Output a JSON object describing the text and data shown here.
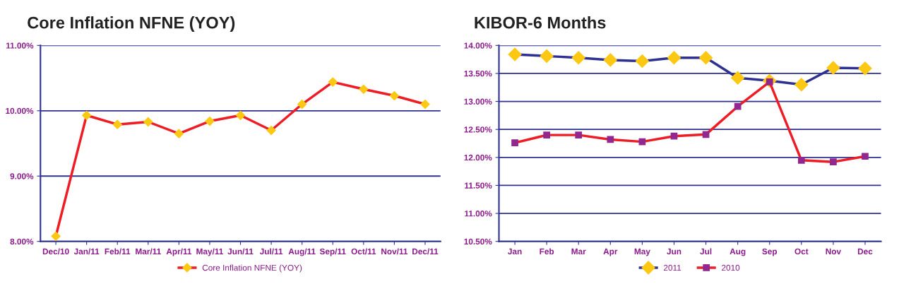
{
  "chart_data": [
    {
      "type": "line",
      "title": "Core Inflation NFNE (YOY)",
      "categories": [
        "Dec/10",
        "Jan/11",
        "Feb/11",
        "Mar/11",
        "Apr/11",
        "May/11",
        "Jun/11",
        "Jul/11",
        "Aug/11",
        "Sep/11",
        "Oct/11",
        "Nov/11",
        "Dec/11"
      ],
      "series": [
        {
          "name": "Core Inflation NFNE (YOY)",
          "color": "#ee1c25",
          "marker": "diamond",
          "values": [
            8.08,
            9.93,
            9.79,
            9.83,
            9.65,
            9.84,
            9.93,
            9.7,
            10.1,
            10.44,
            10.33,
            10.23,
            10.1
          ]
        }
      ],
      "ylim": [
        8,
        11
      ],
      "yticks": [
        {
          "value": 8,
          "label": "8.00%"
        },
        {
          "value": 9,
          "label": "9.00%"
        },
        {
          "value": 10,
          "label": "10.00%"
        },
        {
          "value": 11,
          "label": "11.00%"
        }
      ],
      "grid": "y",
      "legend": "bottom"
    },
    {
      "type": "line",
      "title": "KIBOR-6 Months",
      "categories": [
        "Jan",
        "Feb",
        "Mar",
        "Apr",
        "May",
        "Jun",
        "Jul",
        "Aug",
        "Sep",
        "Oct",
        "Nov",
        "Dec"
      ],
      "series": [
        {
          "name": "2011",
          "color": "#2e3192",
          "marker": "diamond",
          "values": [
            13.84,
            13.81,
            13.78,
            13.74,
            13.72,
            13.78,
            13.78,
            13.42,
            13.37,
            13.3,
            13.6,
            13.59
          ]
        },
        {
          "name": "2010",
          "color": "#ee1c25",
          "marker": "square",
          "values": [
            12.26,
            12.4,
            12.4,
            12.32,
            12.28,
            12.38,
            12.41,
            12.91,
            13.35,
            11.95,
            11.92,
            12.02
          ]
        }
      ],
      "ylim": [
        10.5,
        14
      ],
      "yticks": [
        {
          "value": 10.5,
          "label": "10.50%"
        },
        {
          "value": 11,
          "label": "11.00%"
        },
        {
          "value": 11.5,
          "label": "11.50%"
        },
        {
          "value": 12,
          "label": "12.00%"
        },
        {
          "value": 12.5,
          "label": "12.50%"
        },
        {
          "value": 13,
          "label": "13.00%"
        },
        {
          "value": 13.5,
          "label": "13.50%"
        },
        {
          "value": 14,
          "label": "14.00%"
        }
      ],
      "grid": "y",
      "legend": "bottom"
    }
  ]
}
